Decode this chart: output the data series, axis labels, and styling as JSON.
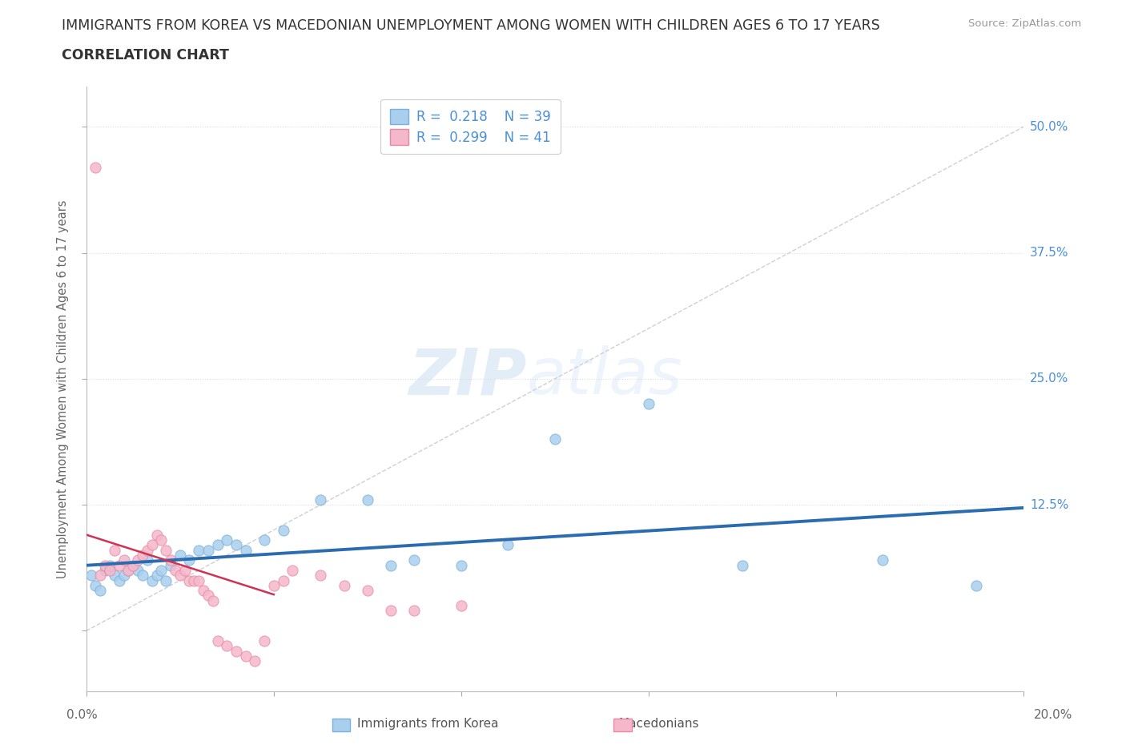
{
  "title_line1": "IMMIGRANTS FROM KOREA VS MACEDONIAN UNEMPLOYMENT AMONG WOMEN WITH CHILDREN AGES 6 TO 17 YEARS",
  "title_line2": "CORRELATION CHART",
  "source": "Source: ZipAtlas.com",
  "ylabel": "Unemployment Among Women with Children Ages 6 to 17 years",
  "korea_color": "#aacfee",
  "korea_edge": "#7ab0db",
  "mac_color": "#f5b8ca",
  "mac_edge": "#e88aa4",
  "trendline_korea_color": "#2b6cb0",
  "trendline_mac_color": "#cc3355",
  "diagonal_color": "#d0d0d0",
  "watermark_zip": "ZIP",
  "watermark_atlas": "atlas",
  "background_color": "#ffffff",
  "grid_color": "#dddddd",
  "xlim": [
    0.0,
    0.2
  ],
  "ylim": [
    -0.06,
    0.54
  ],
  "ytick_vals": [
    0.0,
    0.125,
    0.25,
    0.375,
    0.5
  ],
  "ytick_labels_right": [
    "",
    "12.5%",
    "25.0%",
    "37.5%",
    "50.0%"
  ],
  "xtick_vals": [
    0.0,
    0.04,
    0.08,
    0.12,
    0.16,
    0.2
  ],
  "korea_scatter_x": [
    0.001,
    0.002,
    0.003,
    0.004,
    0.005,
    0.006,
    0.007,
    0.008,
    0.009,
    0.01,
    0.011,
    0.012,
    0.013,
    0.014,
    0.015,
    0.016,
    0.017,
    0.018,
    0.02,
    0.022,
    0.024,
    0.026,
    0.028,
    0.03,
    0.032,
    0.034,
    0.038,
    0.042,
    0.05,
    0.06,
    0.065,
    0.07,
    0.08,
    0.09,
    0.1,
    0.12,
    0.14,
    0.17,
    0.19
  ],
  "korea_scatter_y": [
    0.055,
    0.045,
    0.04,
    0.06,
    0.065,
    0.055,
    0.05,
    0.055,
    0.06,
    0.065,
    0.06,
    0.055,
    0.07,
    0.05,
    0.055,
    0.06,
    0.05,
    0.065,
    0.075,
    0.07,
    0.08,
    0.08,
    0.085,
    0.09,
    0.085,
    0.08,
    0.09,
    0.1,
    0.13,
    0.13,
    0.065,
    0.07,
    0.065,
    0.085,
    0.19,
    0.225,
    0.065,
    0.07,
    0.045
  ],
  "mac_scatter_x": [
    0.002,
    0.003,
    0.004,
    0.005,
    0.006,
    0.007,
    0.008,
    0.009,
    0.01,
    0.011,
    0.012,
    0.013,
    0.014,
    0.015,
    0.016,
    0.017,
    0.018,
    0.019,
    0.02,
    0.021,
    0.022,
    0.023,
    0.024,
    0.025,
    0.026,
    0.027,
    0.028,
    0.03,
    0.032,
    0.034,
    0.036,
    0.038,
    0.04,
    0.042,
    0.044,
    0.05,
    0.055,
    0.06,
    0.065,
    0.07,
    0.08
  ],
  "mac_scatter_y": [
    0.46,
    0.055,
    0.065,
    0.06,
    0.08,
    0.065,
    0.07,
    0.06,
    0.065,
    0.07,
    0.075,
    0.08,
    0.085,
    0.095,
    0.09,
    0.08,
    0.07,
    0.06,
    0.055,
    0.06,
    0.05,
    0.05,
    0.05,
    0.04,
    0.035,
    0.03,
    -0.01,
    -0.015,
    -0.02,
    -0.025,
    -0.03,
    -0.01,
    0.045,
    0.05,
    0.06,
    0.055,
    0.045,
    0.04,
    0.02,
    0.02,
    0.025
  ],
  "legend_label_k": "R =  0.218    N = 39",
  "legend_label_m": "R =  0.299    N = 41",
  "bottom_legend_k": "Immigrants from Korea",
  "bottom_legend_m": "Macedonians"
}
